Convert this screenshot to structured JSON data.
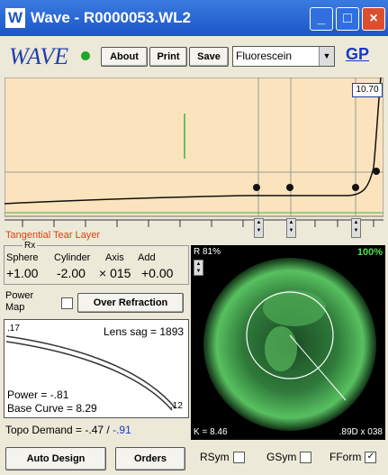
{
  "window": {
    "icon": "W",
    "title": "Wave - R0000053.WL2"
  },
  "toolbar": {
    "logo": "WAVE",
    "buttons": [
      "About",
      "Print",
      "Save"
    ],
    "dropdown": "Fluorescein",
    "link": "GP"
  },
  "graph": {
    "readout": "10.70",
    "label": "Tangential Tear Layer"
  },
  "rx": {
    "title": "Rx",
    "headers": [
      "Sphere",
      "Cylinder",
      "Axis",
      "Add"
    ],
    "values": [
      "+1.00",
      "-2.00",
      "× 015",
      "+0.00"
    ]
  },
  "power_map": {
    "label": "Power Map",
    "button": "Over Refraction"
  },
  "lens": {
    "edge_left": ".17",
    "sag": "Lens sag = 1893",
    "power": "Power = -.81",
    "base_curve": "Base Curve = 8.29",
    "edge_right": ".12"
  },
  "topo": {
    "label": "Topo Demand = -.47 /",
    "value": "-.91"
  },
  "buttons": [
    "Auto Design",
    "Orders"
  ],
  "map": {
    "top_left": "R 81%",
    "top_right": "100%",
    "bottom_left": "K = 8.46",
    "bottom_right": ".89D x 038"
  },
  "checkboxes": [
    "RSym",
    "GSym",
    "FForm"
  ]
}
